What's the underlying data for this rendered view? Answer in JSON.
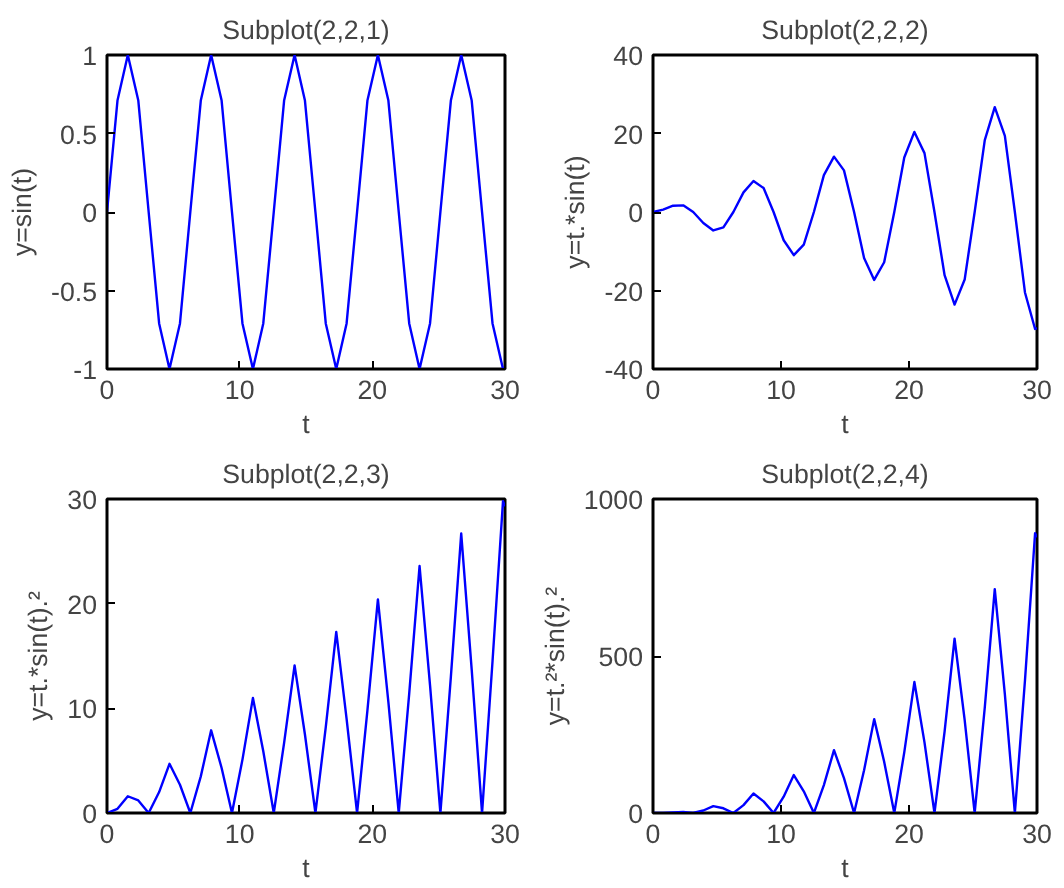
{
  "chart_data": [
    {
      "type": "line",
      "title": "Subplot(2,2,1)",
      "xlabel": "t",
      "ylabel": "y=sin(t)",
      "x": [
        0,
        0.79,
        1.57,
        2.36,
        3.14,
        3.93,
        4.71,
        5.5,
        6.28,
        7.07,
        7.85,
        8.64,
        9.42,
        10.21,
        11,
        11.78,
        12.57,
        13.35,
        14.14,
        14.92,
        15.71,
        16.49,
        17.28,
        18.06,
        18.85,
        19.63,
        20.42,
        21.21,
        21.99,
        22.78,
        23.56,
        24.35,
        25.13,
        25.92,
        26.7,
        27.49,
        28.27,
        29.06,
        29.85,
        30
      ],
      "series": [
        {
          "color": "#0000ff",
          "values": [
            0,
            0.71,
            1,
            0.71,
            0,
            -0.71,
            -1,
            -0.71,
            0,
            0.71,
            1,
            0.71,
            0,
            -0.71,
            -1,
            -0.71,
            0,
            0.71,
            1,
            0.71,
            0,
            -0.71,
            -1,
            -0.71,
            0,
            0.71,
            1,
            0.71,
            0,
            -0.71,
            -1,
            -0.71,
            0,
            0.71,
            1,
            0.71,
            0,
            -0.71,
            -1,
            -0.99
          ]
        }
      ],
      "xlim": [
        0,
        30
      ],
      "ylim": [
        -1,
        1
      ],
      "xticks": [
        0,
        10,
        20,
        30
      ],
      "yticks": [
        -1,
        -0.5,
        0,
        0.5,
        1
      ]
    },
    {
      "type": "line",
      "title": "Subplot(2,2,2)",
      "xlabel": "t",
      "ylabel": "y=t.*sin(t)",
      "x": [
        0,
        0.79,
        1.57,
        2.36,
        3.14,
        3.93,
        4.71,
        5.5,
        6.28,
        7.07,
        7.85,
        8.64,
        9.42,
        10.21,
        11,
        11.78,
        12.57,
        13.35,
        14.14,
        14.92,
        15.71,
        16.49,
        17.28,
        18.06,
        18.85,
        19.63,
        20.42,
        21.21,
        21.99,
        22.78,
        23.56,
        24.35,
        25.13,
        25.92,
        26.7,
        27.49,
        28.27,
        29.06,
        29.85,
        30
      ],
      "series": [
        {
          "color": "#0000ff",
          "values": [
            0,
            0.6,
            1.6,
            1.7,
            0,
            -2.8,
            -4.7,
            -3.9,
            0,
            5,
            7.9,
            6.1,
            0,
            -7.2,
            -11,
            -8.3,
            0,
            9.4,
            14.1,
            10.6,
            0,
            -11.7,
            -17.3,
            -12.8,
            0,
            13.9,
            20.4,
            15,
            0,
            -16.1,
            -23.6,
            -17.2,
            0,
            18.3,
            26.7,
            19.4,
            0,
            -20.5,
            -29.8,
            -29.6
          ]
        }
      ],
      "xlim": [
        0,
        30
      ],
      "ylim": [
        -40,
        40
      ],
      "xticks": [
        0,
        10,
        20,
        30
      ],
      "yticks": [
        -40,
        -20,
        0,
        20,
        40
      ]
    },
    {
      "type": "line",
      "title": "Subplot(2,2,3)",
      "xlabel": "t",
      "ylabel": "y=t.*sin(t).²",
      "x": [
        0,
        0.79,
        1.57,
        2.36,
        3.14,
        3.93,
        4.71,
        5.5,
        6.28,
        7.07,
        7.85,
        8.64,
        9.42,
        10.21,
        11,
        11.78,
        12.57,
        13.35,
        14.14,
        14.92,
        15.71,
        16.49,
        17.28,
        18.06,
        18.85,
        19.63,
        20.42,
        21.21,
        21.99,
        22.78,
        23.56,
        24.35,
        25.13,
        25.92,
        26.7,
        27.49,
        28.27,
        29.06,
        29.85,
        30
      ],
      "series": [
        {
          "color": "#0000ff",
          "values": [
            0,
            0.4,
            1.6,
            1.2,
            0,
            2,
            4.7,
            2.7,
            0,
            3.5,
            7.9,
            4.3,
            0,
            5.1,
            11,
            5.9,
            0,
            6.7,
            14.1,
            7.5,
            0,
            8.2,
            17.3,
            9,
            0,
            9.8,
            20.4,
            10.6,
            0,
            11.4,
            23.6,
            12.2,
            0,
            13,
            26.7,
            13.7,
            0,
            14.5,
            29.8,
            29.3
          ]
        }
      ],
      "xlim": [
        0,
        30
      ],
      "ylim": [
        0,
        30
      ],
      "xticks": [
        0,
        10,
        20,
        30
      ],
      "yticks": [
        0,
        10,
        20,
        30
      ]
    },
    {
      "type": "line",
      "title": "Subplot(2,2,4)",
      "xlabel": "t",
      "ylabel": "y=t.²*sin(t).²",
      "x": [
        0,
        0.79,
        1.57,
        2.36,
        3.14,
        3.93,
        4.71,
        5.5,
        6.28,
        7.07,
        7.85,
        8.64,
        9.42,
        10.21,
        11,
        11.78,
        12.57,
        13.35,
        14.14,
        14.92,
        15.71,
        16.49,
        17.28,
        18.06,
        18.85,
        19.63,
        20.42,
        21.21,
        21.99,
        22.78,
        23.56,
        24.35,
        25.13,
        25.92,
        26.7,
        27.49,
        28.27,
        29.06,
        29.85,
        30
      ],
      "series": [
        {
          "color": "#0000ff",
          "values": [
            0,
            0,
            2,
            3,
            0,
            8,
            22,
            15,
            0,
            25,
            62,
            37,
            0,
            52,
            121,
            69,
            0,
            89,
            200,
            111,
            0,
            136,
            299,
            163,
            0,
            193,
            417,
            225,
            0,
            259,
            555,
            296,
            0,
            336,
            713,
            378,
            0,
            422,
            891,
            878
          ]
        }
      ],
      "xlim": [
        0,
        30
      ],
      "ylim": [
        0,
        1000
      ],
      "xticks": [
        0,
        10,
        20,
        30
      ],
      "yticks": [
        0,
        500,
        1000
      ]
    }
  ]
}
